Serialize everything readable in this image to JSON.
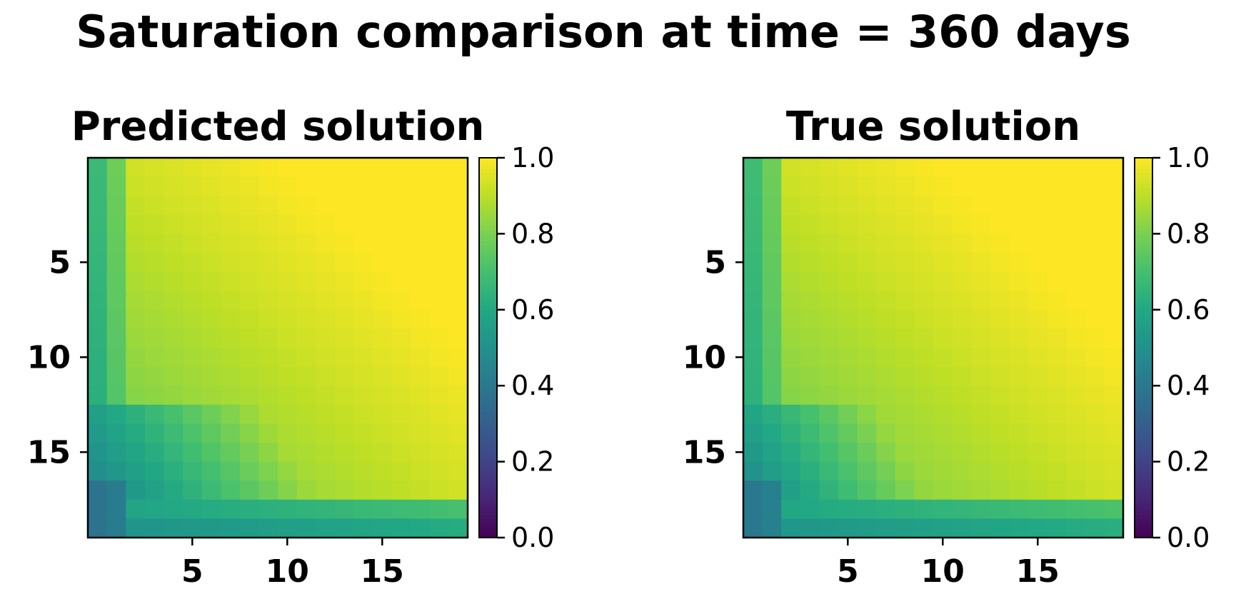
{
  "chart_data": {
    "title": "Saturation comparison at time = 360 days",
    "type": "heatmap",
    "colormap": "viridis",
    "grid_size": [
      20,
      20
    ],
    "colorbar_range": [
      0.0,
      1.0
    ],
    "colorbar_ticks": [
      "0.0",
      "0.2",
      "0.4",
      "0.6",
      "0.8",
      "1.0"
    ],
    "panels": [
      {
        "title": "Predicted solution",
        "x_ticks": [
          "5",
          "10",
          "15"
        ],
        "y_ticks": [
          "5",
          "10",
          "15"
        ],
        "field": {
          "base": 0.74,
          "gx": 0.009,
          "gy": 0.009,
          "edge_col_value": 0.6,
          "edge_col2_value": 0.7,
          "bottom_row_value": 0.5,
          "bottom_row2_value": 0.57,
          "lower_block_start_row": 13,
          "lower_block_value": 0.44,
          "lower_block_ramp": 0.035,
          "corner_value": 0.38
        }
      },
      {
        "title": "True solution",
        "x_ticks": [
          "5",
          "10",
          "15"
        ],
        "y_ticks": [
          "5",
          "10",
          "15"
        ],
        "field": {
          "base": 0.74,
          "gx": 0.009,
          "gy": 0.009,
          "edge_col_value": 0.61,
          "edge_col2_value": 0.7,
          "bottom_row_value": 0.51,
          "bottom_row2_value": 0.58,
          "lower_block_start_row": 13,
          "lower_block_value": 0.46,
          "lower_block_ramp": 0.04,
          "corner_value": 0.4
        }
      }
    ]
  }
}
